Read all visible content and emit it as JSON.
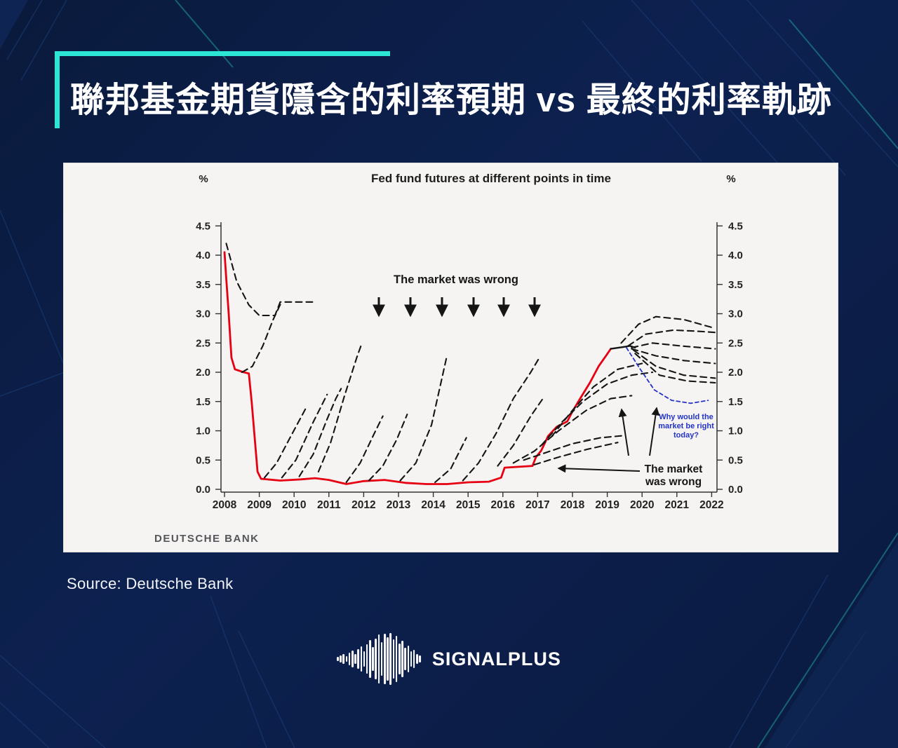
{
  "page": {
    "title": "聯邦基金期貨隱含的利率預期 vs 最終的利率軌跡",
    "source_label": "Source:  Deutsche Bank",
    "brand": "SIGNALPLUS",
    "accent_color": "#2ce5d5",
    "background_color": "#0b1c44"
  },
  "chart_data": {
    "type": "line",
    "title": "Fed fund futures at different points in time",
    "ylabel_left": "%",
    "ylabel_right": "%",
    "xlim": [
      2007.8,
      2022.4
    ],
    "ylim": [
      0,
      4.5
    ],
    "yticks": [
      0.0,
      0.5,
      1.0,
      1.5,
      2.0,
      2.5,
      3.0,
      3.5,
      4.0,
      4.5
    ],
    "xticks": [
      2008,
      2009,
      2010,
      2011,
      2012,
      2013,
      2014,
      2015,
      2016,
      2017,
      2018,
      2019,
      2020,
      2021,
      2022
    ],
    "grid": false,
    "legend": "none",
    "watermark": "DEUTSCHE BANK",
    "annotations": {
      "top": {
        "text": "The market was wrong",
        "arrow_count": 6
      },
      "blue": {
        "lines": [
          "Why would the",
          "market be right",
          "today?"
        ],
        "color": "#2433c8"
      },
      "right": {
        "lines": [
          "The market",
          "was wrong"
        ]
      }
    },
    "series": [
      {
        "name": "actual-fed-funds-rate",
        "style": "solid",
        "color": "#e60012",
        "width": 2.8,
        "points": [
          [
            2008.0,
            4.05
          ],
          [
            2008.05,
            3.6
          ],
          [
            2008.12,
            3.0
          ],
          [
            2008.2,
            2.25
          ],
          [
            2008.3,
            2.05
          ],
          [
            2008.55,
            2.0
          ],
          [
            2008.7,
            1.98
          ],
          [
            2008.78,
            1.5
          ],
          [
            2008.85,
            1.0
          ],
          [
            2008.95,
            0.3
          ],
          [
            2009.05,
            0.18
          ],
          [
            2009.6,
            0.15
          ],
          [
            2010.2,
            0.17
          ],
          [
            2010.6,
            0.19
          ],
          [
            2011.0,
            0.16
          ],
          [
            2011.5,
            0.09
          ],
          [
            2012.0,
            0.14
          ],
          [
            2012.6,
            0.16
          ],
          [
            2013.2,
            0.11
          ],
          [
            2013.8,
            0.09
          ],
          [
            2014.4,
            0.09
          ],
          [
            2015.0,
            0.12
          ],
          [
            2015.6,
            0.13
          ],
          [
            2015.95,
            0.2
          ],
          [
            2016.05,
            0.37
          ],
          [
            2016.85,
            0.4
          ],
          [
            2016.95,
            0.55
          ],
          [
            2017.1,
            0.66
          ],
          [
            2017.3,
            0.91
          ],
          [
            2017.55,
            1.07
          ],
          [
            2017.85,
            1.16
          ],
          [
            2018.0,
            1.33
          ],
          [
            2018.25,
            1.58
          ],
          [
            2018.5,
            1.82
          ],
          [
            2018.75,
            2.1
          ],
          [
            2018.95,
            2.27
          ],
          [
            2019.1,
            2.4
          ]
        ]
      },
      {
        "name": "realized-path-2019",
        "style": "solid",
        "color": "#151515",
        "width": 2.4,
        "points": [
          [
            2019.1,
            2.4
          ],
          [
            2019.45,
            2.43
          ],
          [
            2019.65,
            2.45
          ],
          [
            2019.8,
            2.42
          ]
        ]
      },
      {
        "name": "futures-2008-early",
        "style": "dashed",
        "color": "#151515",
        "width": 2.1,
        "points": [
          [
            2008.05,
            4.2
          ],
          [
            2008.35,
            3.55
          ],
          [
            2008.7,
            3.15
          ],
          [
            2009.0,
            2.97
          ],
          [
            2009.45,
            2.97
          ],
          [
            2009.6,
            3.2
          ],
          [
            2010.55,
            3.2
          ]
        ]
      },
      {
        "name": "futures-2008-late",
        "style": "dashed",
        "color": "#151515",
        "width": 2.1,
        "points": [
          [
            2008.5,
            2.0
          ],
          [
            2008.8,
            2.1
          ],
          [
            2009.1,
            2.45
          ],
          [
            2009.4,
            2.9
          ],
          [
            2009.62,
            3.18
          ]
        ]
      },
      {
        "name": "futures-2009a",
        "style": "dashed",
        "color": "#151515",
        "width": 2.1,
        "points": [
          [
            2009.15,
            0.2
          ],
          [
            2009.5,
            0.45
          ],
          [
            2009.9,
            0.9
          ],
          [
            2010.35,
            1.4
          ]
        ]
      },
      {
        "name": "futures-2009b",
        "style": "dashed",
        "color": "#151515",
        "width": 2.1,
        "points": [
          [
            2009.65,
            0.2
          ],
          [
            2010.05,
            0.5
          ],
          [
            2010.55,
            1.15
          ],
          [
            2010.95,
            1.62
          ]
        ]
      },
      {
        "name": "futures-2010a",
        "style": "dashed",
        "color": "#151515",
        "width": 2.1,
        "points": [
          [
            2010.15,
            0.22
          ],
          [
            2010.55,
            0.6
          ],
          [
            2010.95,
            1.2
          ],
          [
            2011.2,
            1.55
          ],
          [
            2011.35,
            1.72
          ]
        ]
      },
      {
        "name": "futures-2010b",
        "style": "dashed",
        "color": "#151515",
        "width": 2.1,
        "points": [
          [
            2010.7,
            0.3
          ],
          [
            2011.05,
            0.8
          ],
          [
            2011.45,
            1.6
          ],
          [
            2011.8,
            2.25
          ],
          [
            2011.95,
            2.5
          ]
        ]
      },
      {
        "name": "futures-2011",
        "style": "dashed",
        "color": "#151515",
        "width": 2.1,
        "points": [
          [
            2011.5,
            0.12
          ],
          [
            2011.9,
            0.45
          ],
          [
            2012.3,
            0.95
          ],
          [
            2012.55,
            1.25
          ]
        ]
      },
      {
        "name": "futures-2012",
        "style": "dashed",
        "color": "#151515",
        "width": 2.1,
        "points": [
          [
            2012.15,
            0.15
          ],
          [
            2012.55,
            0.4
          ],
          [
            2012.95,
            0.85
          ],
          [
            2013.25,
            1.28
          ]
        ]
      },
      {
        "name": "futures-2013",
        "style": "dashed",
        "color": "#151515",
        "width": 2.1,
        "points": [
          [
            2013.05,
            0.15
          ],
          [
            2013.5,
            0.45
          ],
          [
            2013.95,
            1.1
          ],
          [
            2014.4,
            2.3
          ]
        ]
      },
      {
        "name": "futures-2014",
        "style": "dashed",
        "color": "#151515",
        "width": 2.1,
        "points": [
          [
            2014.05,
            0.12
          ],
          [
            2014.5,
            0.35
          ],
          [
            2014.95,
            0.88
          ]
        ]
      },
      {
        "name": "futures-2015",
        "style": "dashed",
        "color": "#151515",
        "width": 2.1,
        "points": [
          [
            2014.85,
            0.15
          ],
          [
            2015.3,
            0.45
          ],
          [
            2015.8,
            0.95
          ],
          [
            2016.3,
            1.55
          ],
          [
            2016.8,
            2.0
          ],
          [
            2017.05,
            2.25
          ]
        ]
      },
      {
        "name": "futures-2016a",
        "style": "dashed",
        "color": "#151515",
        "width": 2.1,
        "points": [
          [
            2015.85,
            0.4
          ],
          [
            2016.3,
            0.75
          ],
          [
            2016.8,
            1.25
          ],
          [
            2017.15,
            1.55
          ]
        ]
      },
      {
        "name": "futures-2016b",
        "style": "dashed",
        "color": "#151515",
        "width": 2.1,
        "points": [
          [
            2016.3,
            0.45
          ],
          [
            2016.9,
            0.65
          ],
          [
            2017.6,
            1.0
          ],
          [
            2018.4,
            1.35
          ],
          [
            2019.1,
            1.55
          ],
          [
            2019.7,
            1.6
          ]
        ]
      },
      {
        "name": "futures-2016c-flat",
        "style": "dashed",
        "color": "#151515",
        "width": 2.1,
        "points": [
          [
            2016.6,
            0.5
          ],
          [
            2017.2,
            0.62
          ],
          [
            2018.0,
            0.78
          ],
          [
            2018.8,
            0.88
          ],
          [
            2019.5,
            0.92
          ]
        ]
      },
      {
        "name": "futures-2017-flat",
        "style": "dashed",
        "color": "#151515",
        "width": 2.1,
        "points": [
          [
            2016.9,
            0.42
          ],
          [
            2017.6,
            0.55
          ],
          [
            2018.4,
            0.68
          ],
          [
            2019.3,
            0.8
          ]
        ]
      },
      {
        "name": "futures-2017a",
        "style": "dashed",
        "color": "#151515",
        "width": 2.1,
        "points": [
          [
            2017.1,
            0.75
          ],
          [
            2017.7,
            1.15
          ],
          [
            2018.3,
            1.5
          ],
          [
            2019.0,
            1.8
          ],
          [
            2019.7,
            1.95
          ],
          [
            2020.3,
            2.0
          ]
        ]
      },
      {
        "name": "futures-2017b",
        "style": "dashed",
        "color": "#151515",
        "width": 2.1,
        "points": [
          [
            2017.4,
            0.9
          ],
          [
            2018.0,
            1.35
          ],
          [
            2018.6,
            1.75
          ],
          [
            2019.3,
            2.05
          ],
          [
            2020.0,
            2.15
          ]
        ]
      },
      {
        "name": "projection-2019-high",
        "style": "dashed",
        "color": "#151515",
        "width": 2.1,
        "points": [
          [
            2019.4,
            2.5
          ],
          [
            2019.9,
            2.82
          ],
          [
            2020.4,
            2.95
          ],
          [
            2021.2,
            2.9
          ],
          [
            2022.1,
            2.75
          ]
        ]
      },
      {
        "name": "projection-2019-2",
        "style": "dashed",
        "color": "#151515",
        "width": 2.1,
        "points": [
          [
            2019.6,
            2.45
          ],
          [
            2020.1,
            2.65
          ],
          [
            2020.9,
            2.72
          ],
          [
            2021.6,
            2.7
          ],
          [
            2022.1,
            2.68
          ]
        ]
      },
      {
        "name": "projection-2019-3",
        "style": "dashed",
        "color": "#151515",
        "width": 2.1,
        "points": [
          [
            2019.7,
            2.42
          ],
          [
            2020.3,
            2.5
          ],
          [
            2021.1,
            2.45
          ],
          [
            2022.1,
            2.4
          ]
        ]
      },
      {
        "name": "projection-2019-4",
        "style": "dashed",
        "color": "#151515",
        "width": 2.1,
        "points": [
          [
            2019.7,
            2.4
          ],
          [
            2020.4,
            2.28
          ],
          [
            2021.2,
            2.2
          ],
          [
            2022.1,
            2.15
          ]
        ]
      },
      {
        "name": "projection-2019-5",
        "style": "dashed",
        "color": "#151515",
        "width": 2.1,
        "points": [
          [
            2019.75,
            2.38
          ],
          [
            2020.4,
            2.1
          ],
          [
            2021.2,
            1.95
          ],
          [
            2022.1,
            1.9
          ]
        ]
      },
      {
        "name": "projection-2019-low",
        "style": "dashed",
        "color": "#151515",
        "width": 2.1,
        "points": [
          [
            2019.8,
            2.32
          ],
          [
            2020.5,
            1.95
          ],
          [
            2021.3,
            1.85
          ],
          [
            2022.1,
            1.82
          ]
        ]
      },
      {
        "name": "market-pricing-today-blue",
        "style": "dashed",
        "color": "#2433c8",
        "width": 1.8,
        "points": [
          [
            2019.55,
            2.42
          ],
          [
            2019.95,
            2.05
          ],
          [
            2020.35,
            1.7
          ],
          [
            2020.85,
            1.52
          ],
          [
            2021.4,
            1.47
          ],
          [
            2021.9,
            1.52
          ]
        ]
      }
    ]
  }
}
